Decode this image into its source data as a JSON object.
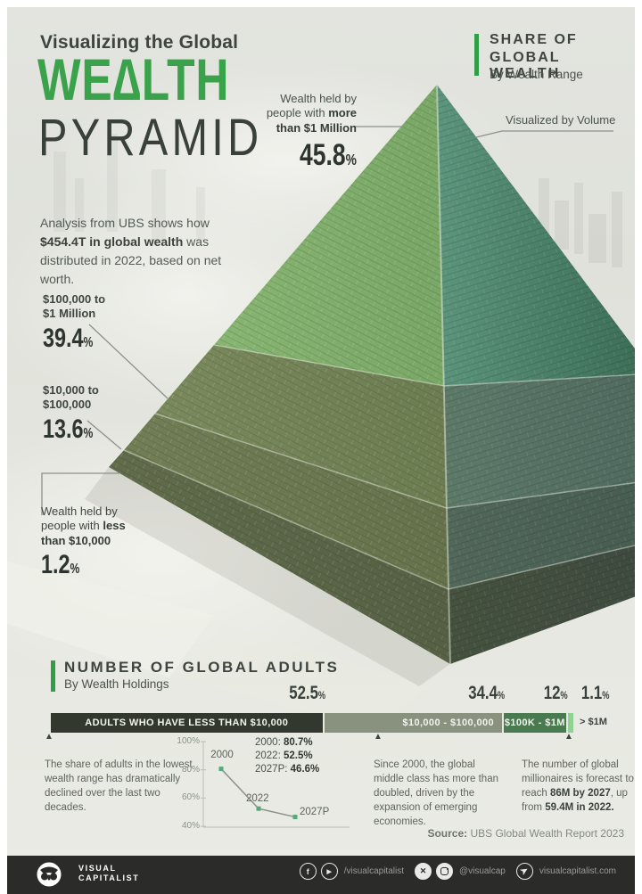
{
  "header": {
    "kicker": "Visualizing the Global",
    "title1": "WE∆LTH",
    "title2": "PYRAMID",
    "intro_pre": "Analysis from UBS shows how ",
    "intro_bold": "$454.4T in global wealth",
    "intro_post": " was distributed in 2022, based on net worth."
  },
  "share_box": {
    "line1": "SHARE OF",
    "line2": "GLOBAL WEALTH",
    "subtitle": "By Wealth Range"
  },
  "volume_note": "Visualized by Volume",
  "tiers": {
    "millionaires": {
      "l1": "Wealth held by",
      "l2_pre": "people with ",
      "l2_bold": "more",
      "l3_bold": "than $1 Million",
      "value": "45.8",
      "unit": "%"
    },
    "upper": {
      "l1": "$100,000 to",
      "l2": "$1 Million",
      "value": "39.4",
      "unit": "%"
    },
    "middle": {
      "l1": "$10,000 to",
      "l2": "$100,000",
      "value": "13.6",
      "unit": "%"
    },
    "base": {
      "l1": "Wealth held by",
      "l2_pre": "people with ",
      "l2_bold": "less",
      "l3_bold": "than $10,000",
      "value": "1.2",
      "unit": "%"
    }
  },
  "adults": {
    "heading": "NUMBER OF GLOBAL ADULTS",
    "subheading": "By Wealth Holdings",
    "segments": [
      {
        "label": "ADULTS WHO HAVE LESS THAN $10,000",
        "pct": "52.5",
        "width": 52.5,
        "color": "#33382f",
        "outside": false
      },
      {
        "label": "$10,000 - $100,000",
        "pct": "34.4",
        "width": 34.4,
        "color": "#89927f",
        "outside": false
      },
      {
        "label": "$100K - $1M",
        "pct": "12",
        "width": 12,
        "color": "#4a7a50",
        "outside": false
      },
      {
        "label": "> $1M",
        "pct": "1.1",
        "width": 1.1,
        "color": "#8fd391",
        "outside": true
      }
    ],
    "columns": [
      {
        "text": "The share of adults in the lowest wealth range has dramatically declined over the last two decades."
      },
      {
        "text": "Since 2000, the global middle class has more than doubled, driven by the expansion of emerging economies."
      },
      {
        "text_pre": "The number of global millionaires is forecast to reach ",
        "text_bold1": "86M by 2027",
        "text_mid": ", up from ",
        "text_bold2": "59.4M in 2022."
      }
    ],
    "source_label": "Source:",
    "source_text": " UBS Global Wealth Report 2023"
  },
  "minichart": {
    "ticks": [
      "100%",
      "80%",
      "60%",
      "40%"
    ],
    "point_labels": [
      "2000",
      "2022",
      "2027P"
    ],
    "legend": [
      {
        "k": "2000: ",
        "v": "80.7%"
      },
      {
        "k": "2022: ",
        "v": "52.5%"
      },
      {
        "k": "2027P: ",
        "v": "46.6%"
      }
    ]
  },
  "footer": {
    "brand1": "VISUAL",
    "brand2": "CAPITALIST",
    "social": [
      {
        "label": "/visualcapitalist"
      },
      {
        "label": "@visualcap"
      },
      {
        "label": "visualcapitalist.com"
      }
    ]
  },
  "chart_data": [
    {
      "type": "pie",
      "title": "Share of Global Wealth — By Wealth Range (pyramid, visualized by volume)",
      "subtitle": "$454.4T in global wealth distributed in 2022, based on net worth (UBS)",
      "categories": [
        "More than $1 Million",
        "$100,000 to $1 Million",
        "$10,000 to $100,000",
        "Less than $10,000"
      ],
      "values": [
        45.8,
        39.4,
        13.6,
        1.2
      ],
      "unit": "%"
    },
    {
      "type": "bar",
      "title": "Number of Global Adults — By Wealth Holdings",
      "layout": "single horizontal stacked bar",
      "categories": [
        "Adults who have less than $10,000",
        "$10,000 - $100,000",
        "$100K - $1M",
        "> $1M"
      ],
      "values": [
        52.5,
        34.4,
        12,
        1.1
      ],
      "unit": "%"
    },
    {
      "type": "line",
      "title": "Share of adults in the lowest wealth range",
      "x": [
        "2000",
        "2022",
        "2027P"
      ],
      "values": [
        80.7,
        52.5,
        46.6
      ],
      "ylim": [
        40,
        100
      ],
      "yticks": [
        "100%",
        "80%",
        "60%",
        "40%"
      ],
      "unit": "%",
      "legend_position": "top-right"
    }
  ]
}
